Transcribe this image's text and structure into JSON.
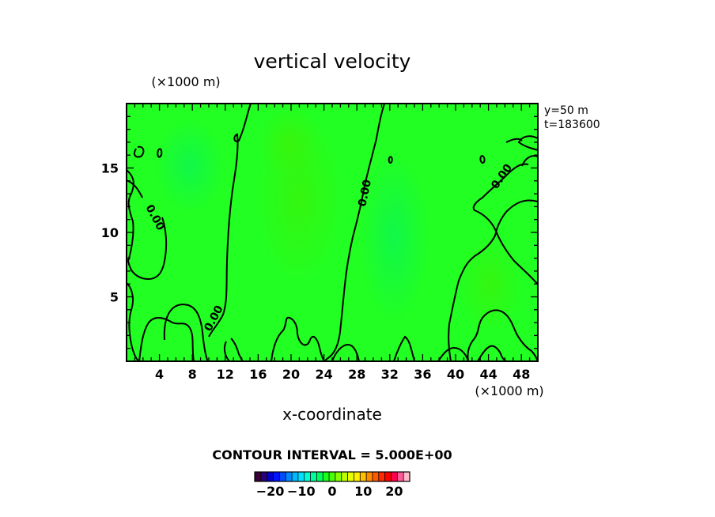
{
  "chart_data": {
    "type": "heatmap",
    "title": "vertical velocity",
    "xlabel": "x-coordinate",
    "x_unit": "(×1000 m)",
    "y_unit": "(×1000 m)",
    "xlim": [
      0,
      50
    ],
    "ylim": [
      0,
      20
    ],
    "x_ticks": [
      4,
      8,
      12,
      16,
      20,
      24,
      28,
      32,
      36,
      40,
      44,
      48
    ],
    "y_ticks": [
      5,
      10,
      15
    ],
    "section_label": "y=50 m",
    "time_label": "t=183600",
    "contour_interval_text": "CONTOUR INTERVAL = 5.000E+00",
    "contour_label": "0.00",
    "field_color": "#22ff22",
    "colorbar": {
      "range": [
        -25,
        25
      ],
      "labels": [
        "−20",
        "−10",
        "0",
        "10",
        "20"
      ],
      "label_values": [
        -20,
        -10,
        0,
        10,
        20
      ],
      "colors": [
        "#3a003a",
        "#28007a",
        "#0000c8",
        "#0014ff",
        "#004cff",
        "#0088ff",
        "#00b8ff",
        "#00e0ff",
        "#00ffd8",
        "#00ff9c",
        "#00ff5a",
        "#19ff19",
        "#4cff00",
        "#88ff00",
        "#bcff00",
        "#e8ff00",
        "#fff000",
        "#ffc000",
        "#ff8c00",
        "#ff5a00",
        "#ff2a00",
        "#ff0000",
        "#ff0050",
        "#ff5a9a",
        "#ffb8c8"
      ]
    }
  }
}
